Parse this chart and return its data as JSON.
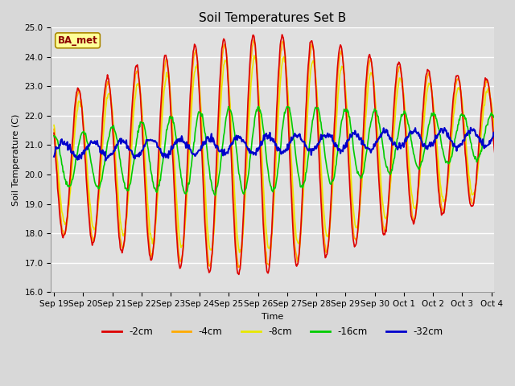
{
  "title": "Soil Temperatures Set B",
  "xlabel": "Time",
  "ylabel": "Soil Temperature (C)",
  "ylim": [
    16.0,
    25.0
  ],
  "yticks": [
    16.0,
    17.0,
    18.0,
    19.0,
    20.0,
    21.0,
    22.0,
    23.0,
    24.0,
    25.0
  ],
  "background_color": "#d8d8d8",
  "plot_bg_color": "#e0e0e0",
  "grid_color": "#ffffff",
  "legend_label": "BA_met",
  "series_colors": {
    "-2cm": "#dd0000",
    "-4cm": "#ffaa00",
    "-8cm": "#e8e800",
    "-16cm": "#00cc00",
    "-32cm": "#0000cc"
  },
  "xtick_labels": [
    "Sep 19",
    "Sep 20",
    "Sep 21",
    "Sep 22",
    "Sep 23",
    "Sep 24",
    "Sep 25",
    "Sep 26",
    "Sep 27",
    "Sep 28",
    "Sep 29",
    "Sep 30",
    "Oct 1",
    "Oct 2",
    "Oct 3",
    "Oct 4"
  ],
  "days": 16,
  "samples_per_day": 48,
  "title_fontsize": 11,
  "axis_fontsize": 8,
  "tick_fontsize": 7.5
}
